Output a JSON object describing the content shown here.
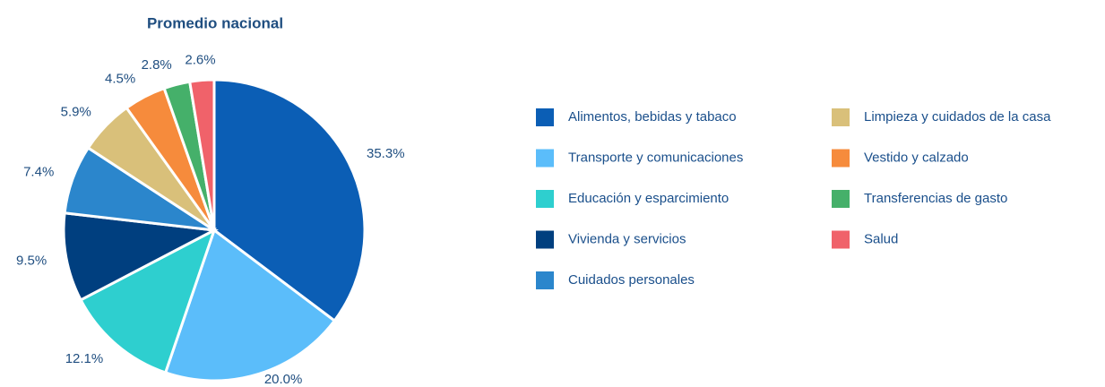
{
  "chart_data": {
    "type": "pie",
    "title": "Promedio nacional",
    "categories": [
      "Alimentos, bebidas y tabaco",
      "Transporte y comunicaciones",
      "Educación y esparcimiento",
      "Vivienda y servicios",
      "Cuidados personales",
      "Limpieza y cuidados de la casa",
      "Vestido y calzado",
      "Transferencias de gasto",
      "Salud"
    ],
    "values": [
      35.3,
      20.0,
      12.1,
      9.5,
      7.4,
      5.9,
      4.5,
      2.8,
      2.6
    ],
    "value_labels": [
      "35.3%",
      "20.0%",
      "12.1%",
      "9.5%",
      "7.4%",
      "5.9%",
      "4.5%",
      "2.8%",
      "2.6%"
    ],
    "colors": [
      "#0b5eb5",
      "#5bbdfa",
      "#2ecfcf",
      "#003f7f",
      "#2b86cc",
      "#d9c07a",
      "#f68b3c",
      "#45b06a",
      "#f0626a"
    ]
  }
}
